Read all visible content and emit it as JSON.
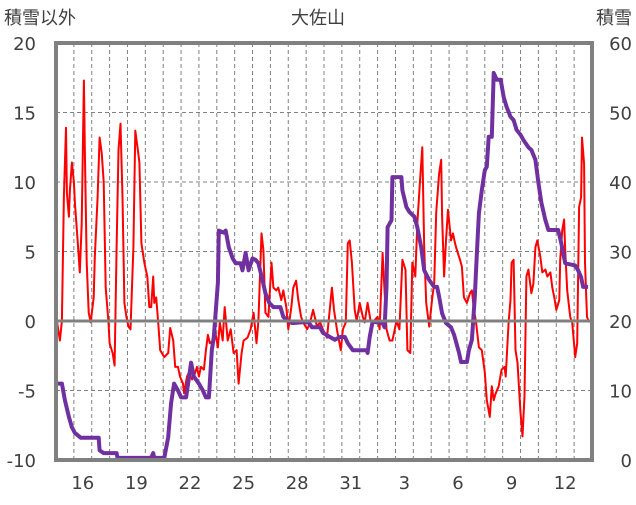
{
  "chart_data": {
    "type": "line",
    "title": "大佐山",
    "ylabel_left": "積雪以外",
    "ylabel_right": "積雪",
    "ylim_left": [
      -10,
      20
    ],
    "ylim_right": [
      0,
      60
    ],
    "yticks_left": [
      "20",
      "15",
      "10",
      "5",
      "0",
      "-5",
      "-10"
    ],
    "yticks_right": [
      "60",
      "50",
      "40",
      "30",
      "20",
      "10",
      "0"
    ],
    "x_unit": "days since first day shown (day 15)",
    "xlim": [
      0,
      30
    ],
    "xtick_labels": [
      "16",
      "19",
      "22",
      "25",
      "28",
      "31",
      "3",
      "6",
      "9",
      "12"
    ],
    "xtick_day_index": [
      1,
      4,
      7,
      10,
      13,
      16,
      19,
      22,
      25,
      28
    ],
    "grid": true,
    "colors": {
      "other": "#ff0000",
      "snow": "#7030a0",
      "axis": "#808080"
    },
    "series": [
      {
        "name": "積雪以外",
        "axis": "left",
        "x": [
          0,
          0.06,
          0.22,
          0.33,
          0.44,
          0.56,
          0.61,
          0.72,
          0.78,
          0.89,
          1.0,
          1.06,
          1.22,
          1.33,
          1.44,
          1.56,
          1.61,
          1.72,
          1.83,
          1.94,
          2.11,
          2.17,
          2.33,
          2.44,
          2.56,
          2.67,
          2.78,
          2.94,
          3.0,
          3.17,
          3.28,
          3.39,
          3.5,
          3.61,
          3.72,
          3.83,
          3.94,
          4.06,
          4.17,
          4.33,
          4.44,
          4.56,
          4.67,
          4.78,
          4.94,
          5.11,
          5.22,
          5.33,
          5.44,
          5.5,
          5.61,
          5.72,
          5.83,
          6.06,
          6.28,
          6.39,
          6.56,
          6.67,
          6.83,
          6.94,
          7.11,
          7.17,
          7.33,
          7.44,
          7.61,
          7.72,
          7.89,
          8.0,
          8.11,
          8.28,
          8.39,
          8.5,
          8.61,
          8.78,
          8.89,
          9.06,
          9.17,
          9.33,
          9.39,
          9.44,
          9.61,
          9.78,
          9.94,
          10.11,
          10.22,
          10.39,
          10.5,
          10.72,
          10.89,
          11.06,
          11.22,
          11.33,
          11.5,
          11.61,
          11.72,
          11.89,
          12.06,
          12.17,
          12.33,
          12.44,
          12.61,
          12.72,
          12.89,
          13.0,
          13.17,
          13.28,
          13.44,
          13.56,
          13.72,
          13.83,
          14.06,
          14.22,
          14.39,
          14.61,
          14.78,
          14.94,
          15.17,
          15.44,
          15.56,
          15.72,
          15.94,
          16.06,
          16.22,
          16.33,
          16.44,
          16.56,
          16.72,
          16.83,
          17.0,
          17.17,
          17.28,
          17.44,
          17.61,
          17.72,
          18.0,
          18.11,
          18.28,
          18.5,
          18.67,
          18.83,
          19.06,
          19.22,
          19.39,
          19.56,
          19.67,
          19.83,
          19.94,
          20.11,
          20.22,
          20.39,
          20.5,
          20.61,
          20.72,
          20.89,
          21.06,
          21.17,
          21.28,
          21.44,
          21.56,
          21.61,
          21.72,
          21.83,
          21.94,
          22.11,
          22.22,
          22.33,
          22.44,
          22.61,
          22.72,
          22.83,
          23.0,
          23.17,
          23.28,
          23.39,
          23.5,
          23.67,
          23.83,
          24.0,
          24.11,
          24.28,
          24.39,
          24.5,
          24.61,
          24.78,
          24.94,
          25.11,
          25.17,
          25.33,
          25.44,
          25.5,
          25.61,
          25.72,
          25.83,
          26.0,
          26.11,
          26.22,
          26.33,
          26.44,
          26.61,
          26.72,
          26.83,
          26.94,
          27.11,
          27.22,
          27.39,
          27.5,
          27.67,
          27.78,
          27.89,
          28.0,
          28.17,
          28.22,
          28.33,
          28.44,
          28.5,
          28.61,
          28.78,
          28.89,
          29.06,
          29.17,
          29.28,
          29.39,
          29.44,
          29.56,
          29.61,
          29.72,
          29.83
        ],
        "y": [
          -1.5,
          -0.1,
          -1.4,
          0,
          9,
          13.9,
          9.2,
          7.5,
          9.4,
          11.4,
          10,
          8.5,
          5.6,
          3.5,
          7,
          17.3,
          12.5,
          4.2,
          0.6,
          -0.1,
          1.7,
          4.6,
          8.9,
          13.2,
          12.1,
          10,
          2.4,
          -0.1,
          -1.6,
          -2.3,
          -3.2,
          5.3,
          12.3,
          14.2,
          8.9,
          1.3,
          0.3,
          -0.4,
          -0.6,
          5.3,
          13.7,
          12.5,
          11.4,
          5.6,
          4.2,
          3.2,
          1,
          1,
          3.2,
          1.3,
          1.7,
          -0.1,
          -2.1,
          -2.6,
          -2.3,
          -0.5,
          -1.4,
          -3.3,
          -3.3,
          -4,
          -4.5,
          -5.2,
          -4,
          -3.7,
          -4.2,
          -4,
          -3.3,
          -4,
          -3.3,
          -3.5,
          -2.1,
          -1,
          -1.6,
          -1.4,
          -0.6,
          -1.9,
          -0.1,
          -1.4,
          0,
          1,
          -1.4,
          -0.6,
          -2.3,
          -2.1,
          -4.5,
          -2.3,
          -1.4,
          -1.2,
          -0.6,
          0.6,
          -1.6,
          0,
          6.3,
          5.1,
          0.6,
          0.3,
          4.2,
          2.4,
          2.2,
          2.4,
          1.5,
          2.2,
          1,
          -0.6,
          1,
          2.4,
          2.9,
          1.5,
          0.3,
          -0.1,
          -0.6,
          -0.1,
          0.8,
          -0.4,
          -0.1,
          -0.6,
          -1.2,
          2.4,
          0.8,
          -0.6,
          -2.1,
          -0.6,
          -0.1,
          5.6,
          5.8,
          4.2,
          0.8,
          0,
          1.3,
          0.3,
          -0.1,
          1.3,
          0,
          -0.1,
          0.3,
          -0.6,
          4.9,
          -0.6,
          -1.4,
          -1.4,
          0,
          -0.6,
          4.4,
          3.7,
          -2.1,
          -2.3,
          4.2,
          3.2,
          7,
          10.4,
          12.5,
          5.3,
          1.3,
          -0.4,
          1.7,
          2.7,
          7.8,
          10.6,
          11.6,
          7.5,
          3.2,
          5.8,
          8,
          5.8,
          6.3,
          5.6,
          5.1,
          4.4,
          3.9,
          1.7,
          1.3,
          2,
          2.2,
          0.8,
          0,
          -1.9,
          -2.1,
          -3.7,
          -5.7,
          -6.9,
          -4.7,
          -5.7,
          -5.2,
          -4.7,
          -3.5,
          -3.3,
          -4,
          -0.1,
          1.5,
          4.2,
          4.4,
          -2.1,
          -3,
          -6.6,
          -8.3,
          -5.4,
          3.2,
          3.7,
          2,
          2.7,
          5.3,
          5.8,
          4.6,
          3.5,
          3.7,
          3.2,
          3.5,
          2.4,
          1.7,
          0.8,
          1.5,
          4.4,
          6.5,
          7.3,
          5.1,
          2.2,
          0.3,
          -0.1,
          -2.6,
          -1.6,
          8.2,
          8.9,
          13.2,
          11.3,
          4.2,
          0.3,
          -0.1
        ]
      },
      {
        "name": "積雪",
        "axis": "right",
        "x": [
          0,
          0.33,
          0.5,
          0.72,
          0.89,
          1.06,
          1.39,
          2.39,
          2.44,
          2.67,
          3.39,
          3.44,
          5.33,
          5.44,
          5.5,
          6.06,
          6.28,
          6.44,
          6.61,
          6.83,
          7.0,
          7.28,
          7.56,
          7.72,
          8.0,
          8.22,
          8.39,
          8.56,
          8.72,
          8.83,
          9.06,
          9.11,
          9.39,
          9.5,
          9.67,
          9.89,
          10.06,
          10.33,
          10.44,
          10.61,
          10.78,
          11.0,
          11.17,
          11.33,
          11.56,
          11.72,
          11.94,
          12.17,
          12.56,
          12.72,
          12.94,
          13.22,
          14.11,
          14.33,
          14.78,
          14.94,
          15.33,
          15.61,
          15.89,
          16.17,
          16.33,
          16.61,
          17.39,
          17.44,
          17.56,
          17.72,
          18.28,
          18.39,
          18.5,
          18.56,
          18.78,
          18.83,
          19.33,
          19.39,
          19.61,
          19.78,
          20.06,
          20.22,
          20.44,
          20.61,
          20.89,
          21.17,
          21.33,
          21.44,
          21.61,
          21.83,
          22.11,
          22.28,
          22.56,
          22.67,
          23.0,
          23.11,
          23.28,
          23.44,
          23.56,
          23.67,
          23.83,
          24.0,
          24.11,
          24.22,
          24.39,
          24.5,
          24.67,
          24.89,
          25.06,
          25.22,
          25.44,
          25.61,
          25.78,
          26.0,
          26.17,
          26.44,
          26.61,
          26.83,
          27.0,
          27.17,
          27.39,
          27.56,
          28.11,
          28.28,
          28.5,
          29.06,
          29.22,
          29.39,
          29.5,
          29.78
        ],
        "y": [
          11,
          11,
          8.6,
          6.2,
          4.7,
          3.9,
          3.2,
          3.2,
          1.4,
          1,
          1,
          0.3,
          0.3,
          1,
          0.3,
          0.3,
          3.3,
          8.2,
          11,
          10,
          9,
          9,
          14,
          12,
          11,
          10,
          9,
          9,
          15.8,
          17.7,
          25.5,
          33,
          32.7,
          33,
          30.6,
          29,
          28.3,
          28.3,
          27.3,
          29.8,
          27.3,
          29,
          28.8,
          28.3,
          25.9,
          24,
          22.6,
          22,
          22,
          20.6,
          20.1,
          19.7,
          19.9,
          19.1,
          19.1,
          18.3,
          17.7,
          17.3,
          17.7,
          17.7,
          16.8,
          15.8,
          15.8,
          15.4,
          17.7,
          19.9,
          19.7,
          19.1,
          24.9,
          33.5,
          34.5,
          40.7,
          40.7,
          38.8,
          36.4,
          35.7,
          35,
          33.5,
          30.6,
          27.3,
          25.9,
          24.9,
          24.9,
          23.5,
          21.1,
          19.7,
          19.1,
          18,
          15.4,
          14.1,
          14.1,
          15.8,
          17.3,
          23.5,
          29.8,
          35.5,
          38.8,
          41.7,
          42.2,
          46.5,
          46.5,
          55.7,
          54.7,
          54.7,
          52.2,
          50.8,
          49.4,
          48.9,
          47.5,
          46.8,
          46,
          45,
          44.6,
          43.2,
          39.9,
          37,
          34.5,
          33.1,
          33.1,
          31.2,
          28.3,
          28,
          27.3,
          26.3,
          24.9,
          24.9
        ]
      }
    ]
  }
}
